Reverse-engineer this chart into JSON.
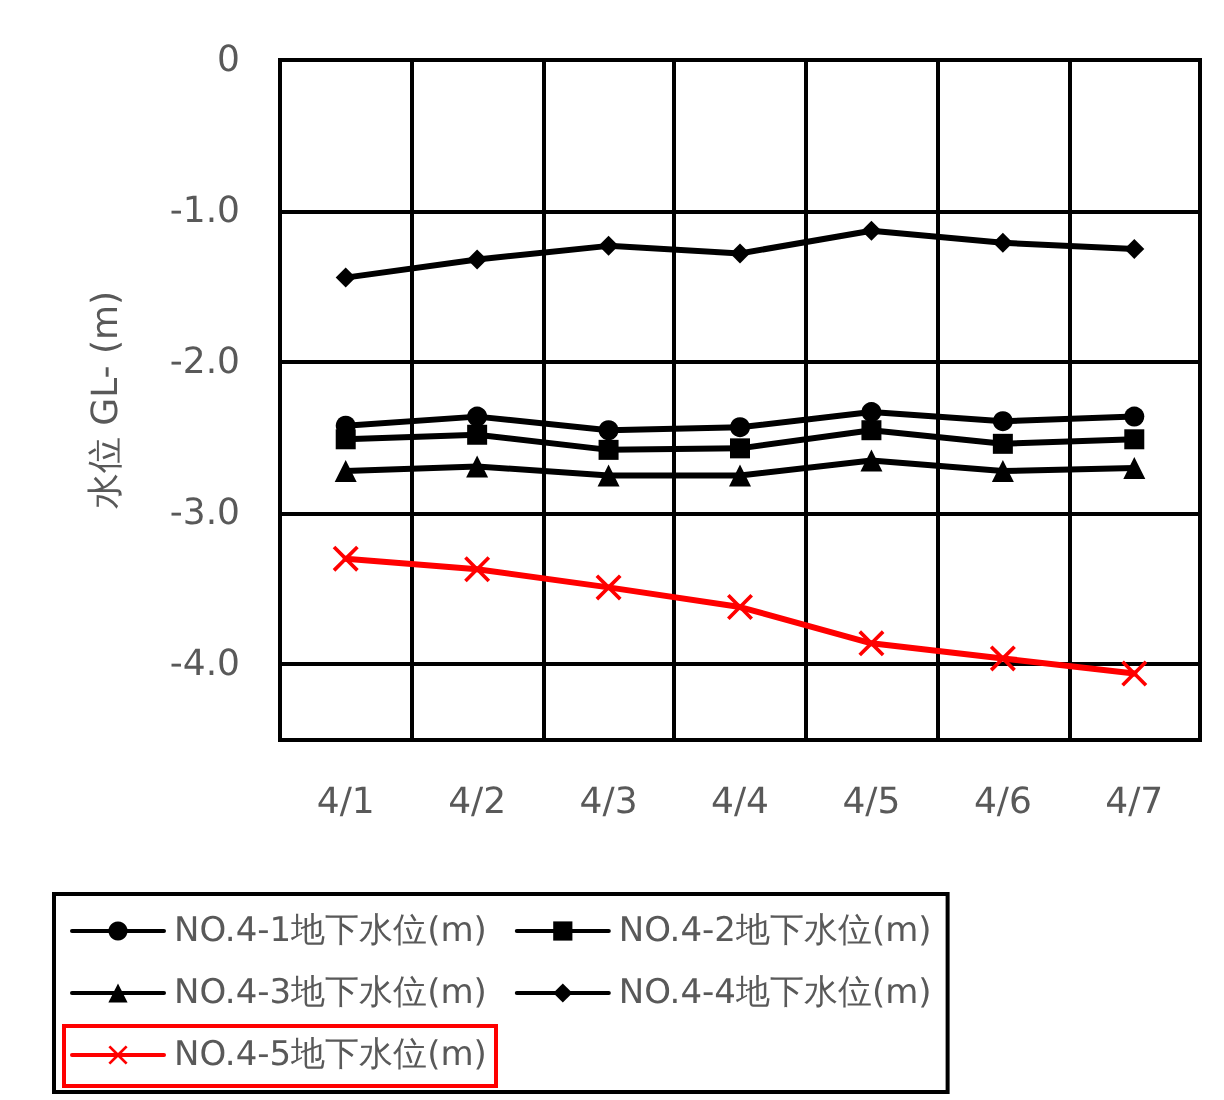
{
  "chart_data": {
    "type": "line",
    "ylabel": "水位 GL- (m)",
    "categories": [
      "4/1",
      "4/2",
      "4/3",
      "4/4",
      "4/5",
      "4/6",
      "4/7"
    ],
    "series": [
      {
        "name": "NO.4-1地下水位(m)",
        "color": "#000000",
        "marker": "circle",
        "values": [
          -2.42,
          -2.36,
          -2.45,
          -2.43,
          -2.33,
          -2.39,
          -2.36
        ]
      },
      {
        "name": "NO.4-2地下水位(m)",
        "color": "#000000",
        "marker": "square",
        "values": [
          -2.51,
          -2.48,
          -2.58,
          -2.57,
          -2.45,
          -2.54,
          -2.51
        ]
      },
      {
        "name": "NO.4-3地下水位(m)",
        "color": "#000000",
        "marker": "triangle",
        "values": [
          -2.72,
          -2.69,
          -2.75,
          -2.75,
          -2.65,
          -2.72,
          -2.7
        ]
      },
      {
        "name": "NO.4-4地下水位(m)",
        "color": "#000000",
        "marker": "diamond",
        "values": [
          -1.44,
          -1.32,
          -1.23,
          -1.28,
          -1.13,
          -1.21,
          -1.25
        ]
      },
      {
        "name": "NO.4-5地下水位(m)",
        "color": "#ff0000",
        "marker": "cross",
        "values": [
          -3.3,
          -3.37,
          -3.49,
          -3.62,
          -3.86,
          -3.96,
          -4.06
        ]
      }
    ],
    "ylim": [
      -4.5,
      0
    ],
    "yticks": [
      0,
      {
        "value": -1,
        "label": "-1.0"
      },
      {
        "value": -2,
        "label": "-2.0"
      },
      {
        "value": -3,
        "label": "-3.0"
      },
      {
        "value": -4,
        "label": "-4.0"
      }
    ],
    "grid": true,
    "legend": "bottom",
    "line_style": "solid"
  }
}
